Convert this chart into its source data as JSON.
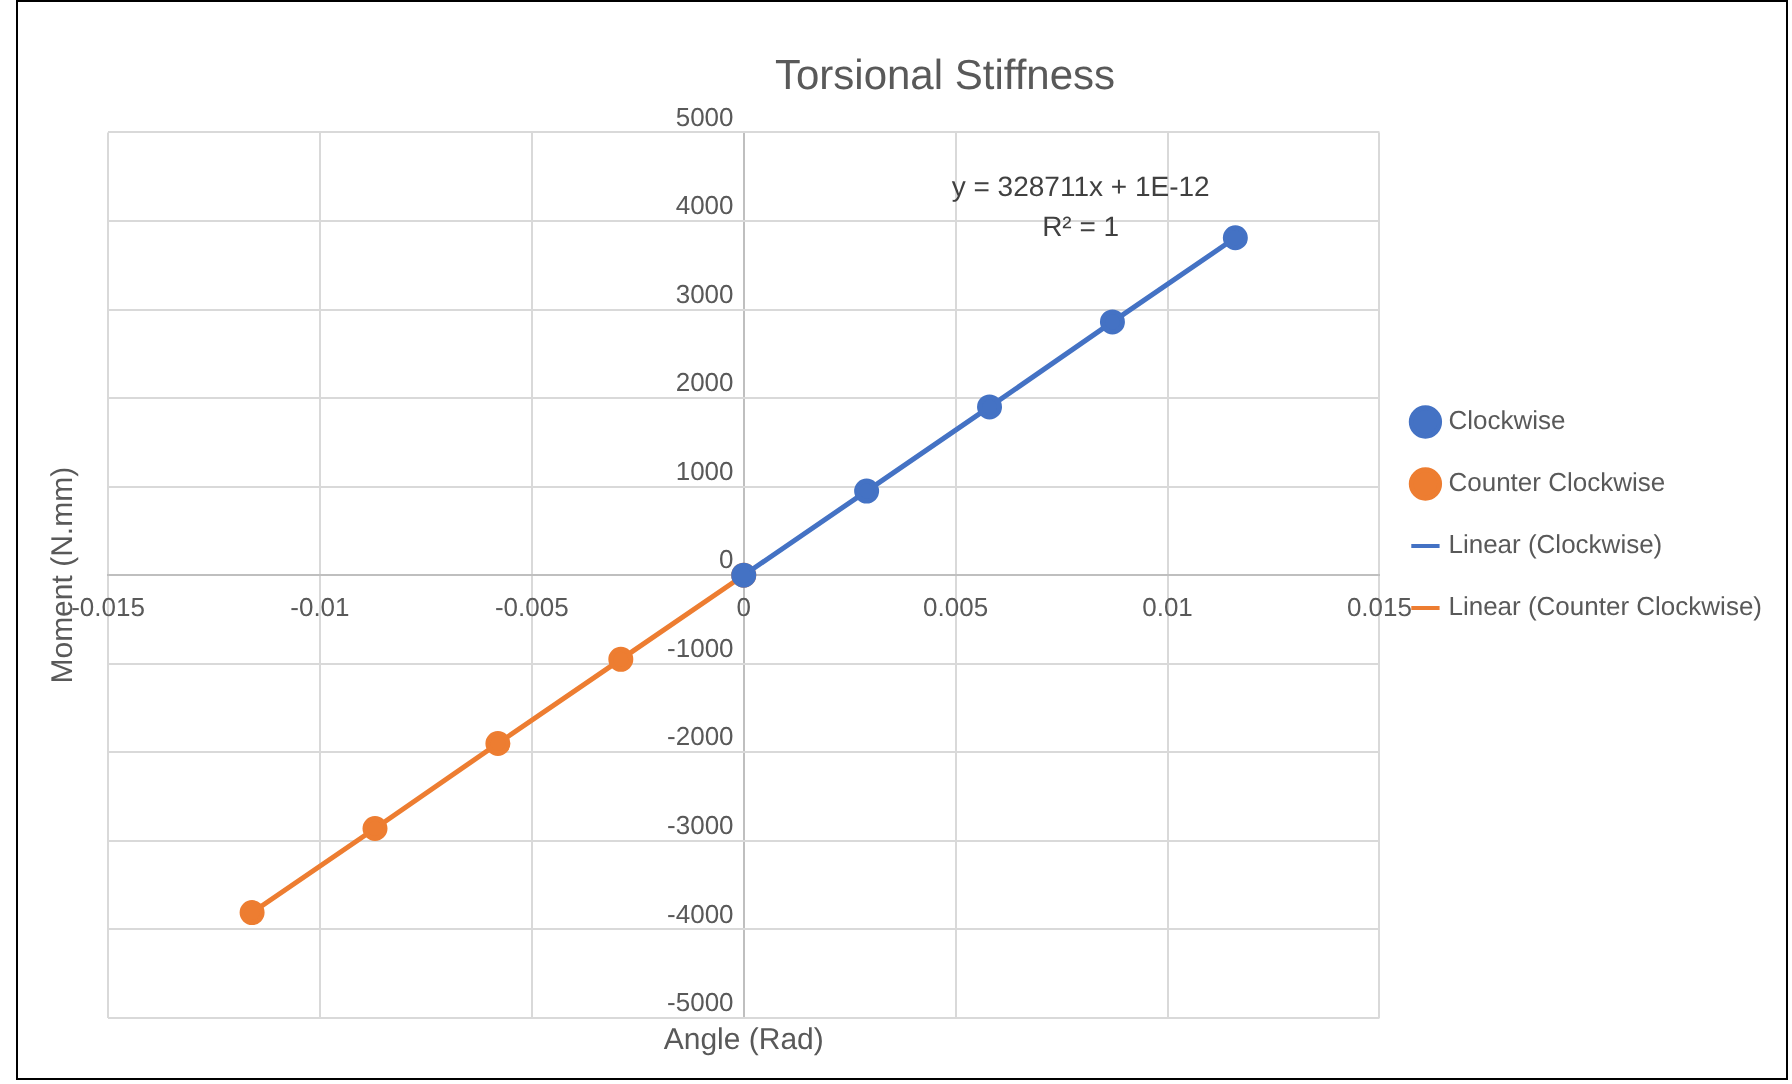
{
  "chart_data": {
    "type": "line",
    "title": "Torsional Stiffness",
    "xlabel": "Angle (Rad)",
    "ylabel": "Moment (N.mm)",
    "xlim": [
      -0.015,
      0.015
    ],
    "xticks": [
      -0.015,
      -0.01,
      -0.005,
      0,
      0.005,
      0.01,
      0.015
    ],
    "ylim": [
      -5000,
      5000
    ],
    "yticks": [
      -5000,
      -4000,
      -3000,
      -2000,
      -1000,
      0,
      1000,
      2000,
      3000,
      4000,
      5000
    ],
    "grid": true,
    "legend": "right",
    "marker": "circle",
    "line_style": "solid",
    "annotations": [
      "y = 328711x + 1E-12",
      "R² = 1"
    ],
    "series": [
      {
        "name": "Clockwise",
        "color": "#4472c4",
        "x": [
          0,
          0.0029,
          0.0058,
          0.0087,
          0.0116
        ],
        "values": [
          0,
          950,
          1900,
          2860,
          3810
        ]
      },
      {
        "name": "Counter Clockwise",
        "color": "#ed7d31",
        "x": [
          0,
          -0.0029,
          -0.0058,
          -0.0087,
          -0.0116
        ],
        "values": [
          0,
          -950,
          -1900,
          -2860,
          -3810
        ]
      },
      {
        "name": "Linear (Clockwise)",
        "color": "#4472c4",
        "type": "line",
        "line_style": "dotted",
        "marker": "none",
        "values": [
          null,
          null
        ]
      },
      {
        "name": "Linear (Counter Clockwise)",
        "color": "#ed7d31",
        "type": "line",
        "line_style": "dotted",
        "marker": "none",
        "values": [
          null,
          null
        ]
      }
    ]
  }
}
